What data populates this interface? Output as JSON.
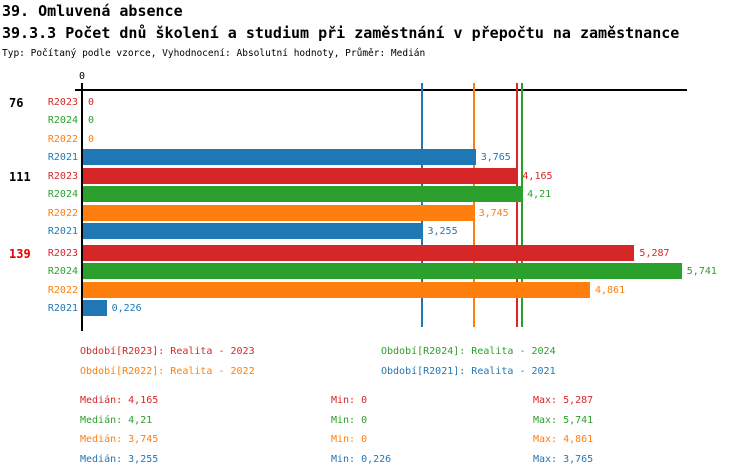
{
  "header": {
    "title": "39. Omluvená absence",
    "subtitle": "39.3.3 Počet dnů školení a studium při zaměstnání v přepočtu na zaměstnance",
    "meta": "Typ: Počítaný podle vzorce, Vyhodnocení: Absolutní hodnoty, Průměr: Medián"
  },
  "colors": {
    "R2023": "#d62728",
    "R2024": "#2ca02c",
    "R2022": "#ff7f0e",
    "R2021": "#1f77b4",
    "axis": "#000000",
    "group_highlight": "#e60000",
    "group_normal": "#000000"
  },
  "chart_data": {
    "type": "bar",
    "orientation": "horizontal",
    "title": "39.3.3 Počet dnů školení a studium při zaměstnání v přepočtu na zaměstnance",
    "xlabel": "",
    "ylabel": "",
    "xlim": [
      0,
      5.8
    ],
    "grid": false,
    "axis_zero_label": "0",
    "series_order": [
      "R2023",
      "R2024",
      "R2022",
      "R2021"
    ],
    "groups": [
      {
        "label": "76",
        "label_color_key": "group_normal",
        "rows": [
          {
            "series": "R2023",
            "value": 0,
            "value_label": "0"
          },
          {
            "series": "R2024",
            "value": 0,
            "value_label": "0"
          },
          {
            "series": "R2022",
            "value": 0,
            "value_label": "0"
          },
          {
            "series": "R2021",
            "value": 3.765,
            "value_label": "3,765"
          }
        ]
      },
      {
        "label": "111",
        "label_color_key": "group_normal",
        "rows": [
          {
            "series": "R2023",
            "value": 4.165,
            "value_label": "4,165"
          },
          {
            "series": "R2024",
            "value": 4.21,
            "value_label": "4,21"
          },
          {
            "series": "R2022",
            "value": 3.745,
            "value_label": "3,745"
          },
          {
            "series": "R2021",
            "value": 3.255,
            "value_label": "3,255"
          }
        ]
      },
      {
        "label": "139",
        "label_color_key": "group_highlight",
        "rows": [
          {
            "series": "R2023",
            "value": 5.287,
            "value_label": "5,287"
          },
          {
            "series": "R2024",
            "value": 5.741,
            "value_label": "5,741"
          },
          {
            "series": "R2022",
            "value": 4.861,
            "value_label": "4,861"
          },
          {
            "series": "R2021",
            "value": 0.226,
            "value_label": "0,226"
          }
        ]
      }
    ],
    "median_lines": [
      {
        "series": "R2023",
        "value": 4.165
      },
      {
        "series": "R2024",
        "value": 4.21
      },
      {
        "series": "R2022",
        "value": 3.745
      },
      {
        "series": "R2021",
        "value": 3.255
      }
    ]
  },
  "legend": [
    {
      "series": "R2023",
      "text": "Období[R2023]: Realita - 2023"
    },
    {
      "series": "R2024",
      "text": "Období[R2024]: Realita - 2024"
    },
    {
      "series": "R2022",
      "text": "Období[R2022]: Realita - 2022"
    },
    {
      "series": "R2021",
      "text": "Období[R2021]: Realita - 2021"
    }
  ],
  "stats": [
    {
      "series": "R2023",
      "median": "Medián: 4,165",
      "min": "Min: 0",
      "max": "Max: 5,287"
    },
    {
      "series": "R2024",
      "median": "Medián: 4,21",
      "min": "Min: 0",
      "max": "Max: 5,741"
    },
    {
      "series": "R2022",
      "median": "Medián: 3,745",
      "min": "Min: 0",
      "max": "Max: 4,861"
    },
    {
      "series": "R2021",
      "median": "Medián: 3,255",
      "min": "Min: 0,226",
      "max": "Max: 3,765"
    }
  ]
}
